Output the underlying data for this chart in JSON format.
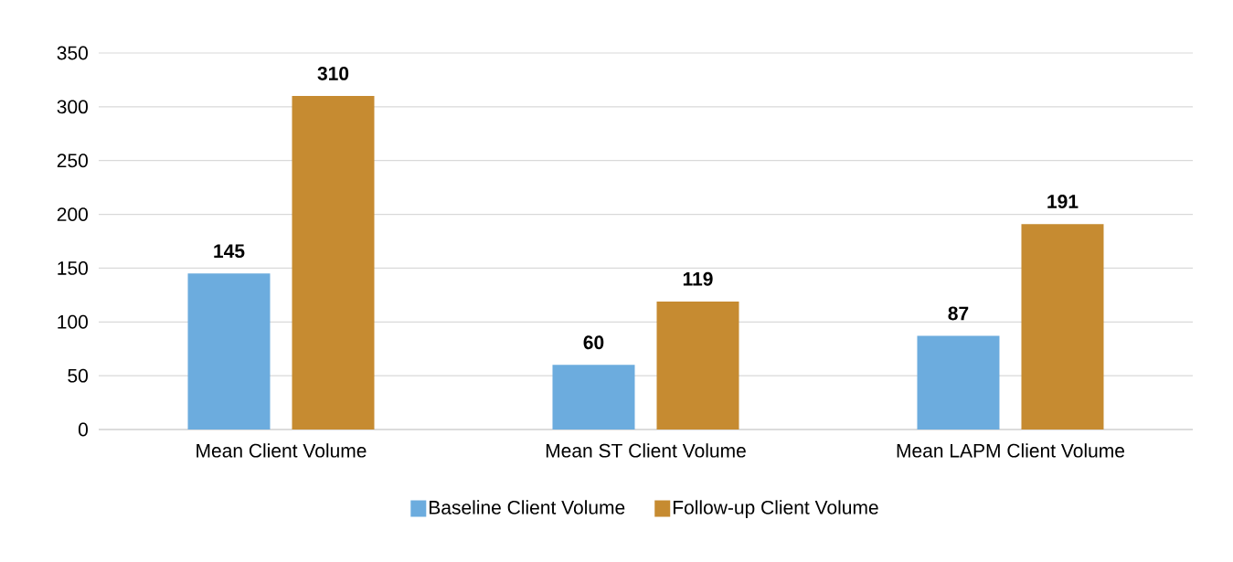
{
  "chart_data": {
    "type": "bar",
    "categories": [
      "Mean Client Volume",
      "Mean ST Client Volume",
      "Mean LAPM Client Volume"
    ],
    "series": [
      {
        "name": "Baseline Client Volume",
        "color": "#6cacde",
        "values": [
          145,
          60,
          87
        ]
      },
      {
        "name": "Follow-up Client Volume",
        "color": "#c68b31",
        "values": [
          310,
          119,
          191
        ]
      }
    ],
    "ylim": [
      0,
      350
    ],
    "yticks": [
      0,
      50,
      100,
      150,
      200,
      250,
      300,
      350
    ],
    "grid": "y",
    "legend": "bottom",
    "data_labels": true
  }
}
